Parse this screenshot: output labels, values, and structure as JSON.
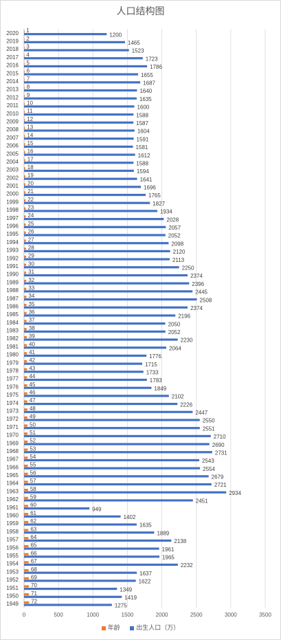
{
  "chart_data": {
    "type": "bar",
    "orientation": "horizontal",
    "title": "人口结构图",
    "categories": [
      "2020",
      "2019",
      "2018",
      "2017",
      "2016",
      "2015",
      "2014",
      "2013",
      "2012",
      "2011",
      "2010",
      "2009",
      "2008",
      "2007",
      "2006",
      "2005",
      "2004",
      "2003",
      "2002",
      "2001",
      "2000",
      "1999",
      "1998",
      "1997",
      "1996",
      "1995",
      "1994",
      "1993",
      "1992",
      "1991",
      "1990",
      "1989",
      "1988",
      "1987",
      "1986",
      "1985",
      "1984",
      "1983",
      "1982",
      "1981",
      "1980",
      "1979",
      "1978",
      "1977",
      "1976",
      "1975",
      "1974",
      "1973",
      "1972",
      "1971",
      "1970",
      "1969",
      "1968",
      "1967",
      "1966",
      "1965",
      "1964",
      "1963",
      "1962",
      "1961",
      "1960",
      "1959",
      "1958",
      "1957",
      "1956",
      "1955",
      "1954",
      "1953",
      "1952",
      "1951",
      "1950",
      "1949"
    ],
    "series": [
      {
        "name": "年龄",
        "color": "#ED7D31",
        "values": [
          1,
          2,
          3,
          4,
          5,
          6,
          7,
          8,
          9,
          10,
          11,
          12,
          13,
          14,
          15,
          16,
          17,
          18,
          19,
          20,
          21,
          22,
          23,
          24,
          25,
          26,
          27,
          28,
          29,
          30,
          31,
          32,
          33,
          34,
          35,
          36,
          37,
          38,
          39,
          40,
          41,
          42,
          43,
          44,
          45,
          46,
          47,
          48,
          49,
          50,
          51,
          52,
          53,
          54,
          55,
          56,
          57,
          58,
          59,
          60,
          61,
          62,
          63,
          64,
          65,
          66,
          67,
          68,
          69,
          70,
          71,
          72
        ]
      },
      {
        "name": "出生人口（万）",
        "color": "#4472C4",
        "values": [
          1200,
          1465,
          1523,
          1723,
          1786,
          1655,
          1687,
          1640,
          1635,
          1600,
          1588,
          1587,
          1604,
          1591,
          1581,
          1612,
          1588,
          1594,
          1641,
          1696,
          1765,
          1827,
          1934,
          2028,
          2057,
          2052,
          2098,
          2120,
          2113,
          2250,
          2374,
          2396,
          2445,
          2508,
          2374,
          2196,
          2050,
          2052,
          2230,
          2064,
          1776,
          1715,
          1733,
          1783,
          1849,
          2102,
          2226,
          2447,
          2550,
          2551,
          2710,
          2690,
          2731,
          2543,
          2554,
          2679,
          2721,
          2934,
          2451,
          949,
          1402,
          1635,
          1889,
          2138,
          1961,
          1965,
          2232,
          1637,
          1622,
          1349,
          1419,
          1275
        ]
      }
    ],
    "xlim": [
      0,
      3500
    ],
    "xticks": [
      "0",
      "500",
      "1000",
      "1500",
      "2000",
      "2500",
      "3000",
      "3500"
    ],
    "grid": true,
    "legend": "bottom"
  }
}
